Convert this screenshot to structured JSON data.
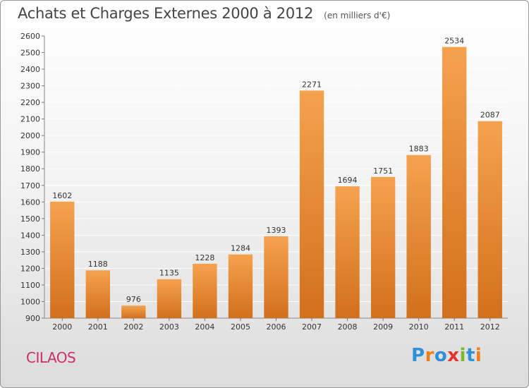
{
  "chart_data": {
    "type": "bar",
    "title": "Achats et Charges Externes 2000 à 2012",
    "unit": "(en milliers d'€)",
    "categories": [
      "2000",
      "2001",
      "2002",
      "2003",
      "2004",
      "2005",
      "2006",
      "2007",
      "2008",
      "2009",
      "2010",
      "2011",
      "2012"
    ],
    "values": [
      1602,
      1188,
      976,
      1135,
      1228,
      1284,
      1393,
      2271,
      1694,
      1751,
      1883,
      2534,
      2087
    ],
    "ylim": [
      900,
      2600
    ],
    "yticks": [
      900,
      1000,
      1100,
      1200,
      1300,
      1400,
      1500,
      1600,
      1700,
      1800,
      1900,
      2000,
      2100,
      2200,
      2300,
      2400,
      2500,
      2600
    ],
    "xlabel": "",
    "ylabel": "",
    "grid": true,
    "bar_color_top": "#f5a24e",
    "bar_color_bottom": "#d2701c"
  },
  "footer": {
    "commune": "CILAOS",
    "logo_letters": [
      "P",
      "r",
      "o",
      "x",
      "i",
      "t",
      "i"
    ],
    "logo_colors": [
      "#2f8fd8",
      "#ef7d1a",
      "#2f8fd8",
      "#e2332f",
      "#7cb82f",
      "#2f8fd8",
      "#ef7d1a"
    ]
  }
}
